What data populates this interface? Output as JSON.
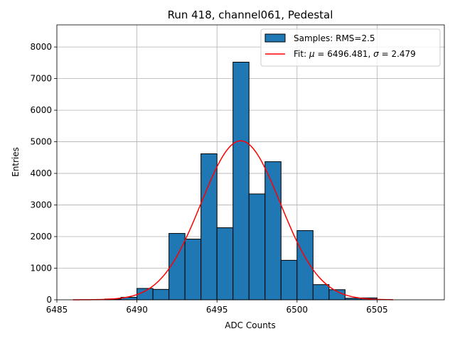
{
  "chart_data": {
    "type": "bar",
    "title": "Run 418, channel061, Pedestal",
    "xlabel": "ADC Counts",
    "ylabel": "Entries",
    "xlim": [
      6485,
      6509.2
    ],
    "ylim": [
      0,
      8700
    ],
    "xticks": [
      6485,
      6490,
      6495,
      6500,
      6505
    ],
    "yticks": [
      0,
      1000,
      2000,
      3000,
      4000,
      5000,
      6000,
      7000,
      8000
    ],
    "grid": true,
    "legend_position": "top-right",
    "bin_width": 1,
    "bins": [
      {
        "left": 6488,
        "value": 25
      },
      {
        "left": 6489,
        "value": 80
      },
      {
        "left": 6490,
        "value": 360
      },
      {
        "left": 6491,
        "value": 330
      },
      {
        "left": 6492,
        "value": 2100
      },
      {
        "left": 6493,
        "value": 1920
      },
      {
        "left": 6494,
        "value": 4620
      },
      {
        "left": 6495,
        "value": 2280
      },
      {
        "left": 6496,
        "value": 7520
      },
      {
        "left": 6497,
        "value": 3350
      },
      {
        "left": 6498,
        "value": 4370
      },
      {
        "left": 6499,
        "value": 1250
      },
      {
        "left": 6500,
        "value": 2190
      },
      {
        "left": 6501,
        "value": 480
      },
      {
        "left": 6502,
        "value": 320
      },
      {
        "left": 6503,
        "value": 50
      },
      {
        "left": 6504,
        "value": 60
      }
    ],
    "fit": {
      "mu": 6496.481,
      "sigma": 2.479,
      "amplitude": 5030,
      "x_range": [
        6486,
        6506
      ]
    },
    "series": [
      {
        "name": "Samples: RMS=2.5",
        "kind": "histogram",
        "color": "#1f77b4",
        "edge_color": "#000000"
      },
      {
        "name": "Fit",
        "kind": "line",
        "color": "#ff0000"
      }
    ],
    "legend": {
      "samples_label": "Samples: RMS=2.5",
      "fit_prefix": "Fit: ",
      "mu_symbol": "μ",
      "mu_text": " = 6496.481, ",
      "sigma_symbol": "σ",
      "sigma_text": " = 2.479"
    }
  }
}
